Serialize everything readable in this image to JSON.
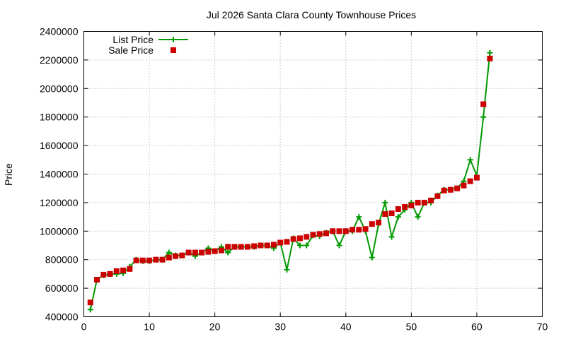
{
  "chart_data": {
    "type": "line",
    "title": "Jul 2026 Santa Clara County Townhouse Prices",
    "xlabel": "",
    "ylabel": "Price",
    "xlim": [
      0,
      70
    ],
    "ylim": [
      400000,
      2400000
    ],
    "xticks": [
      0,
      10,
      20,
      30,
      40,
      50,
      60,
      70
    ],
    "yticks": [
      400000,
      600000,
      800000,
      1000000,
      1200000,
      1400000,
      1600000,
      1800000,
      2000000,
      2200000,
      2400000
    ],
    "grid": true,
    "legend_position": "top-left",
    "series": [
      {
        "name": "List Price",
        "style": "line+cross",
        "color": "#009900",
        "x": [
          1,
          2,
          3,
          4,
          5,
          6,
          7,
          8,
          9,
          10,
          11,
          12,
          13,
          14,
          15,
          16,
          17,
          18,
          19,
          20,
          21,
          22,
          23,
          24,
          25,
          26,
          27,
          28,
          29,
          30,
          31,
          32,
          33,
          34,
          35,
          36,
          37,
          38,
          39,
          40,
          41,
          42,
          43,
          44,
          45,
          46,
          47,
          48,
          49,
          50,
          51,
          52,
          53,
          54,
          55,
          56,
          57,
          58,
          59,
          60,
          61,
          62
        ],
        "y": [
          450000,
          660000,
          690000,
          700000,
          700000,
          705000,
          750000,
          800000,
          790000,
          790000,
          800000,
          800000,
          850000,
          830000,
          830000,
          850000,
          825000,
          850000,
          880000,
          860000,
          890000,
          850000,
          890000,
          890000,
          890000,
          890000,
          900000,
          900000,
          880000,
          920000,
          730000,
          950000,
          900000,
          900000,
          970000,
          965000,
          990000,
          1000000,
          900000,
          1000000,
          1000000,
          1100000,
          1000000,
          815000,
          1050000,
          1200000,
          960000,
          1100000,
          1150000,
          1200000,
          1100000,
          1200000,
          1200000,
          1250000,
          1290000,
          1290000,
          1300000,
          1350000,
          1500000,
          1390000,
          1800000,
          2250000
        ]
      },
      {
        "name": "Sale Price",
        "style": "square",
        "color": "#cc0000",
        "x": [
          1,
          2,
          3,
          4,
          5,
          6,
          7,
          8,
          9,
          10,
          11,
          12,
          13,
          14,
          15,
          16,
          17,
          18,
          19,
          20,
          21,
          22,
          23,
          24,
          25,
          26,
          27,
          28,
          29,
          30,
          31,
          32,
          33,
          34,
          35,
          36,
          37,
          38,
          39,
          40,
          41,
          42,
          43,
          44,
          45,
          46,
          47,
          48,
          49,
          50,
          51,
          52,
          53,
          54,
          55,
          56,
          57,
          58,
          59,
          60,
          61,
          62
        ],
        "y": [
          500000,
          660000,
          695000,
          700000,
          720000,
          725000,
          735000,
          795000,
          795000,
          795000,
          800000,
          800000,
          815000,
          825000,
          830000,
          850000,
          850000,
          850000,
          855000,
          860000,
          865000,
          890000,
          890000,
          890000,
          890000,
          895000,
          900000,
          900000,
          905000,
          920000,
          925000,
          945000,
          950000,
          960000,
          975000,
          980000,
          985000,
          1000000,
          1000000,
          1000000,
          1010000,
          1010000,
          1015000,
          1050000,
          1060000,
          1120000,
          1125000,
          1155000,
          1170000,
          1180000,
          1200000,
          1200000,
          1215000,
          1245000,
          1285000,
          1290000,
          1300000,
          1320000,
          1350000,
          1375000,
          1890000,
          2210000
        ]
      }
    ]
  }
}
